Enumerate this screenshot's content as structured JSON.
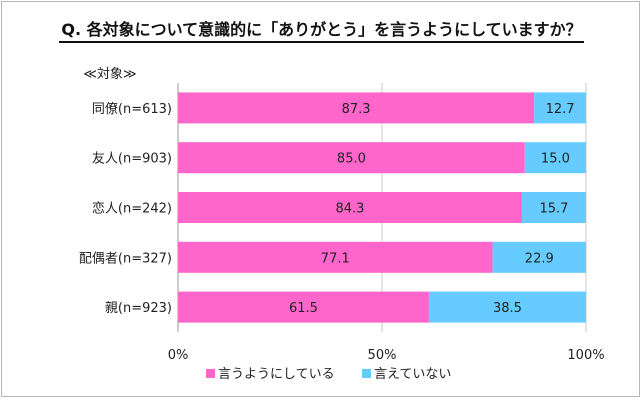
{
  "title": "Q. 各対象について意識的に「ありがとう」を言うようにしていますか？",
  "chart_data": {
    "type": "bar",
    "orientation": "horizontal",
    "stacked": true,
    "percent": true,
    "axis_caption": "≪対象≫",
    "categories": [
      "同僚(n=613)",
      "友人(n=903)",
      "恋人(n=242)",
      "配偶者(n=327)",
      "親(n=923)"
    ],
    "series": [
      {
        "name": "言うようにしている",
        "color": "#ff66cc",
        "values": [
          87.3,
          85.0,
          84.3,
          77.1,
          61.5
        ],
        "labels": [
          "87.3",
          "85.0",
          "84.3",
          "77.1",
          "61.5"
        ]
      },
      {
        "name": "言えていない",
        "color": "#66ccff",
        "values": [
          12.7,
          15.0,
          15.7,
          22.9,
          38.5
        ],
        "labels": [
          "12.7",
          "15.0",
          "15.7",
          "22.9",
          "38.5"
        ]
      }
    ],
    "xlim": [
      0,
      100
    ],
    "ticks": [
      0,
      50,
      100
    ],
    "tick_labels": [
      "0%",
      "50%",
      "100%"
    ],
    "grid": true,
    "legend_position": "bottom"
  }
}
